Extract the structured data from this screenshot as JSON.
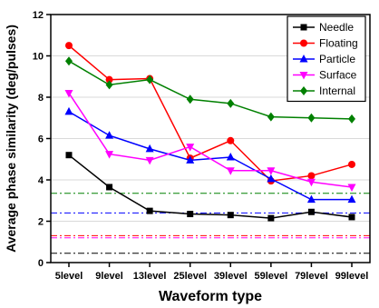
{
  "chart_data": {
    "type": "line",
    "xlabel": "Waveform type",
    "ylabel": "Average phase similarity (deg/pulses)",
    "categories": [
      "5level",
      "9level",
      "13level",
      "25level",
      "39level",
      "59level",
      "79level",
      "99level"
    ],
    "ylim": [
      0,
      12
    ],
    "yticks": [
      0,
      2,
      4,
      6,
      8,
      10,
      12
    ],
    "grid": "horizontal",
    "legend_position": "top-right",
    "series": [
      {
        "name": "Needle",
        "color": "#000000",
        "marker": "square",
        "values": [
          5.2,
          3.65,
          2.5,
          2.35,
          2.3,
          2.15,
          2.45,
          2.2
        ],
        "reference": 0.45
      },
      {
        "name": "Floating",
        "color": "#ff0000",
        "marker": "circle",
        "values": [
          10.5,
          8.85,
          8.9,
          5.05,
          5.9,
          3.95,
          4.2,
          4.75
        ],
        "reference": 1.3
      },
      {
        "name": "Particle",
        "color": "#0000ff",
        "marker": "triangle-up",
        "values": [
          7.3,
          6.15,
          5.5,
          4.95,
          5.1,
          4.05,
          3.05,
          3.05
        ],
        "reference": 2.4
      },
      {
        "name": "Surface",
        "color": "#ff00ff",
        "marker": "triangle-down",
        "values": [
          8.2,
          5.25,
          4.95,
          5.6,
          4.45,
          4.45,
          3.9,
          3.65
        ],
        "reference": 1.2
      },
      {
        "name": "Internal",
        "color": "#008000",
        "marker": "diamond",
        "values": [
          9.75,
          8.6,
          8.85,
          7.9,
          7.7,
          7.05,
          7.0,
          6.95
        ],
        "reference": 3.35
      }
    ]
  }
}
